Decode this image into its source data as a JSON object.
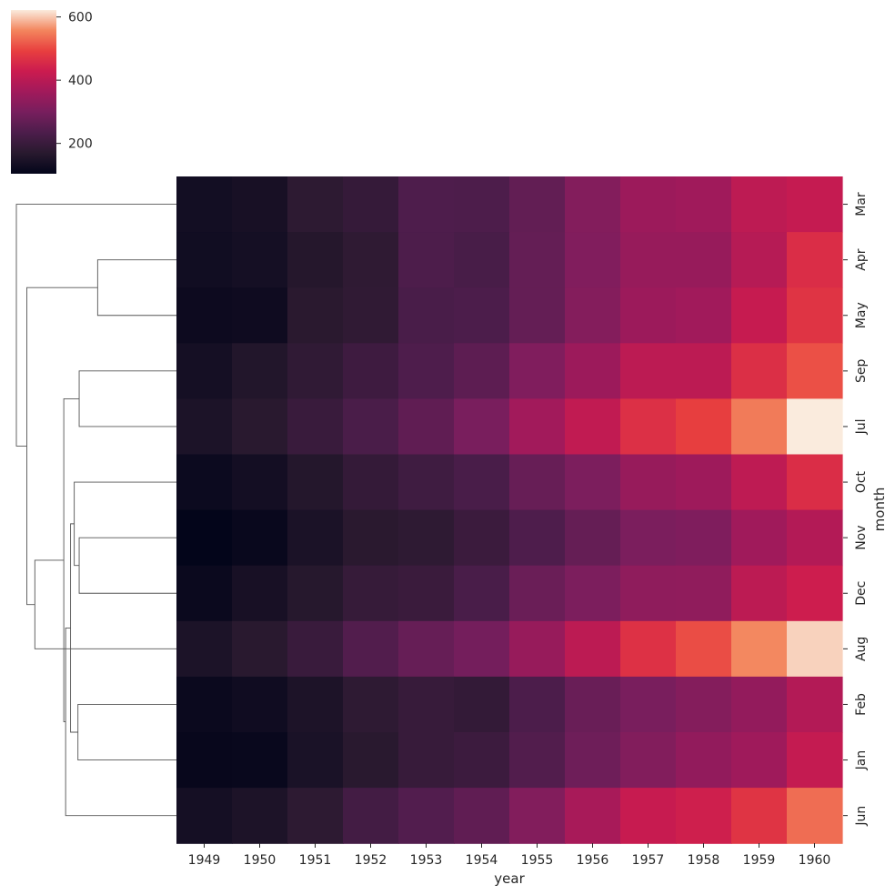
{
  "chart_data": {
    "type": "heatmap",
    "subtype": "clustermap",
    "xlabel": "year",
    "ylabel": "month",
    "x_categories": [
      "1949",
      "1950",
      "1951",
      "1952",
      "1953",
      "1954",
      "1955",
      "1956",
      "1957",
      "1958",
      "1959",
      "1960"
    ],
    "y_categories": [
      "Mar",
      "Apr",
      "May",
      "Sep",
      "Jul",
      "Oct",
      "Nov",
      "Dec",
      "Aug",
      "Feb",
      "Jan",
      "Jun"
    ],
    "values": [
      [
        132,
        141,
        178,
        193,
        236,
        235,
        267,
        317,
        356,
        362,
        406,
        419
      ],
      [
        129,
        135,
        163,
        181,
        235,
        227,
        269,
        313,
        348,
        348,
        396,
        461
      ],
      [
        121,
        125,
        172,
        183,
        229,
        234,
        270,
        318,
        355,
        363,
        420,
        472
      ],
      [
        136,
        158,
        184,
        209,
        237,
        259,
        312,
        355,
        404,
        404,
        463,
        508
      ],
      [
        148,
        170,
        199,
        230,
        264,
        302,
        364,
        413,
        465,
        491,
        548,
        622
      ],
      [
        119,
        133,
        162,
        191,
        211,
        229,
        274,
        306,
        347,
        359,
        407,
        461
      ],
      [
        104,
        114,
        146,
        172,
        180,
        203,
        237,
        271,
        305,
        310,
        362,
        390
      ],
      [
        118,
        140,
        166,
        194,
        201,
        229,
        278,
        306,
        336,
        337,
        405,
        432
      ],
      [
        148,
        170,
        199,
        242,
        272,
        293,
        347,
        405,
        467,
        505,
        559,
        606
      ],
      [
        118,
        126,
        150,
        180,
        196,
        188,
        233,
        277,
        301,
        318,
        342,
        391
      ],
      [
        112,
        115,
        145,
        171,
        196,
        204,
        242,
        284,
        315,
        340,
        360,
        417
      ],
      [
        135,
        149,
        178,
        218,
        243,
        264,
        315,
        374,
        422,
        435,
        472,
        535
      ]
    ],
    "colormap": "rocket",
    "color_range": [
      104,
      622
    ],
    "colorbar_ticks": [
      200,
      400,
      600
    ],
    "row_dendrogram": {
      "merges": [
        {
          "a": "Apr",
          "b": "May"
        },
        {
          "a": "Sep",
          "b": "Jul"
        },
        {
          "a": "Nov",
          "b": "Dec"
        },
        {
          "a": "Feb",
          "b": "Jan"
        },
        {
          "a": 2,
          "b": "Oct"
        },
        {
          "a": 4,
          "b": 3
        },
        {
          "a": 5,
          "b": "Jun"
        },
        {
          "a": 1,
          "b": 6
        },
        {
          "a": "Aug",
          "b": 7
        },
        {
          "a": 0,
          "b": 8
        },
        {
          "a": "Mar",
          "b": 9
        }
      ]
    }
  }
}
